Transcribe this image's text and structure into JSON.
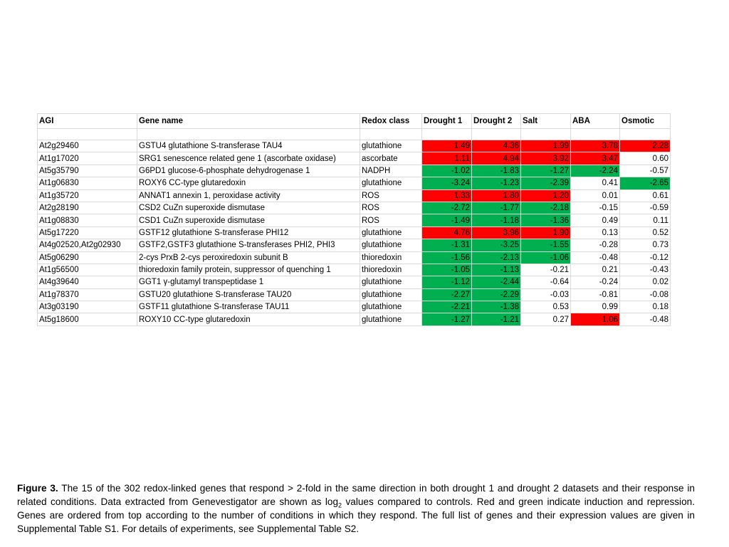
{
  "table": {
    "headers": [
      "AGI",
      "Gene name",
      "Redox class",
      "Drought 1",
      "Drought 2",
      "Salt",
      "ABA",
      "Osmotic"
    ],
    "rows": [
      {
        "agi": "At2g29460",
        "gene": "GSTU4 glutathione S-transferase TAU4",
        "redox": "glutathione",
        "vals": [
          "1.49",
          "4.36",
          "1.99",
          "3.78",
          "2.28"
        ]
      },
      {
        "agi": "At1g17020",
        "gene": "SRG1 senescence related gene 1 (ascorbate oxidase)",
        "redox": "ascorbate",
        "vals": [
          "1.11",
          "4.94",
          "3.92",
          "3.47",
          "0.60"
        ]
      },
      {
        "agi": "At5g35790",
        "gene": "G6PD1 glucose-6-phosphate dehydrogenase 1",
        "redox": "NADPH",
        "vals": [
          "-1.02",
          "-1.83",
          "-1.27",
          "-2.24",
          "-0.57"
        ]
      },
      {
        "agi": "At1g06830",
        "gene": "ROXY6 CC-type glutaredoxin",
        "redox": "glutathione",
        "vals": [
          "-3.24",
          "-1.23",
          "-2.39",
          "0.41",
          "-2.65"
        ]
      },
      {
        "agi": "At1g35720",
        "gene": "ANNAT1 annexin 1, peroxidase activity",
        "redox": "ROS",
        "vals": [
          "1.33",
          "1.80",
          "1.20",
          "0.01",
          "0.61"
        ]
      },
      {
        "agi": "At2g28190",
        "gene": "CSD2 CuZn superoxide dismutase",
        "redox": "ROS",
        "vals": [
          "-2.72",
          "-1.77",
          "-2.18",
          "-0.15",
          "-0.59"
        ]
      },
      {
        "agi": "At1g08830",
        "gene": "CSD1 CuZn superoxide dismutase",
        "redox": "ROS",
        "vals": [
          "-1.49",
          "-1.18",
          "-1.36",
          "0.49",
          "0.11"
        ]
      },
      {
        "agi": "At5g17220",
        "gene": "GSTF12 glutathione S-transferase PHI12",
        "redox": "glutathione",
        "vals": [
          "4.76",
          "3.96",
          "1.90",
          "0.13",
          "0.52"
        ]
      },
      {
        "agi": "At4g02520,At2g02930",
        "gene": "GSTF2,GSTF3 glutathione S-transferases PHI2, PHI3",
        "redox": "glutathione",
        "vals": [
          "-1.31",
          "-3.25",
          "-1.55",
          "-0.28",
          "0.73"
        ]
      },
      {
        "agi": "At5g06290",
        "gene": " 2-cys PrxB 2-cys peroxiredoxin subunit B",
        "redox": "thioredoxin",
        "vals": [
          "-1.56",
          "-2.13",
          "-1.06",
          "-0.48",
          "-0.12"
        ]
      },
      {
        "agi": "At1g56500",
        "gene": "thioredoxin family protein, suppressor of quenching 1",
        "redox": "thioredoxin",
        "vals": [
          "-1.05",
          "-1.13",
          "-0.21",
          "0.21",
          "-0.43"
        ]
      },
      {
        "agi": "At4g39640",
        "gene": "GGT1 γ-glutamyl transpeptidase 1",
        "redox": "glutathione",
        "vals": [
          "-1.12",
          "-2.44",
          "-0.64",
          "-0.24",
          "0.02"
        ]
      },
      {
        "agi": "At1g78370",
        "gene": "GSTU20 glutathione S-transferase TAU20",
        "redox": "glutathione",
        "vals": [
          "-2.27",
          "-2.29",
          "-0.03",
          "-0.81",
          "-0.08"
        ]
      },
      {
        "agi": "At3g03190",
        "gene": "GSTF11 glutathione S-transferase TAU11",
        "redox": "glutathione",
        "vals": [
          "-2.21",
          "-1.38",
          "0.53",
          "0.99",
          "0.18"
        ]
      },
      {
        "agi": "At5g18600",
        "gene": "ROXY10 CC-type glutaredoxin",
        "redox": "glutathione",
        "vals": [
          "-1.27",
          "-1.21",
          "0.27",
          "1.06",
          "-0.48"
        ]
      }
    ]
  },
  "caption": {
    "label": "Figure 3.",
    "text_before_sub": " The 15 of the 302 redox-linked genes that respond > 2-fold in the same direction in both drought 1 and drought 2 datasets and their response in related conditions. Data extracted from Genevestigator are shown as log",
    "sub": "2",
    "text_after_sub": " values compared to controls. Red and green indicate induction and repression. Genes are ordered from top according to the number of conditions in which they respond. The full list of genes and their expression values are given in Supplemental Table S1. For details of experiments, see Supplemental Table S2."
  },
  "colors": {
    "induction": "#ff0000",
    "repression": "#00b050",
    "grid": "#d9d9d9"
  }
}
